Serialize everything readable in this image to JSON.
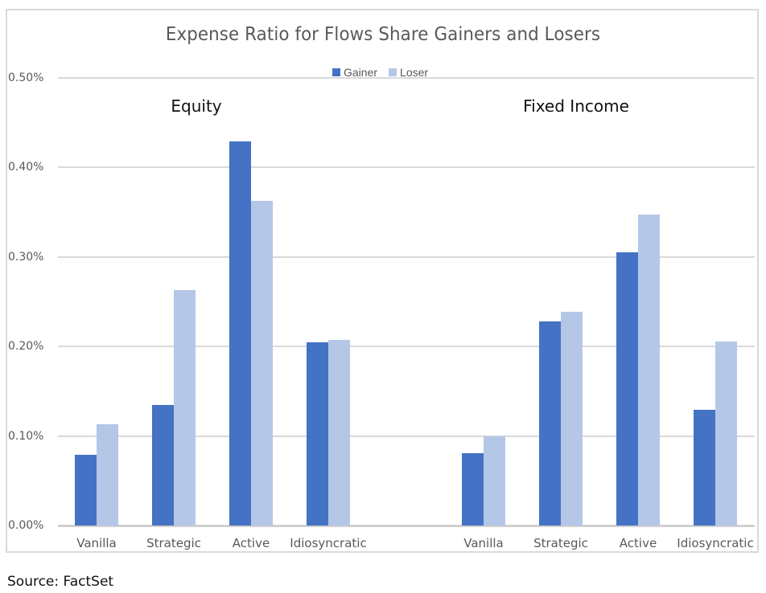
{
  "chart_data": {
    "type": "bar",
    "title": "Expense Ratio for Flows Share Gainers and Losers",
    "xlabel": "",
    "ylabel": "",
    "ylim": [
      0,
      0.5
    ],
    "y_unit": "%",
    "y_ticks": [
      "0.00%",
      "0.10%",
      "0.20%",
      "0.30%",
      "0.40%",
      "0.50%"
    ],
    "grid": true,
    "legend_position": "top",
    "groups": [
      {
        "name": "Equity",
        "categories": [
          "Vanilla",
          "Strategic",
          "Active",
          "Idiosyncratic"
        ],
        "series": [
          {
            "name": "Gainer",
            "values": [
              0.079,
              0.135,
              0.429,
              0.205
            ]
          },
          {
            "name": "Loser",
            "values": [
              0.113,
              0.263,
              0.363,
              0.207
            ]
          }
        ]
      },
      {
        "name": "Fixed Income",
        "categories": [
          "Vanilla",
          "Strategic",
          "Active",
          "Idiosyncratic"
        ],
        "series": [
          {
            "name": "Gainer",
            "values": [
              0.081,
              0.228,
              0.305,
              0.129
            ]
          },
          {
            "name": "Loser",
            "values": [
              0.1,
              0.239,
              0.347,
              0.206
            ]
          }
        ]
      }
    ],
    "categories": [
      "Vanilla",
      "Strategic",
      "Active",
      "Idiosyncratic",
      "Vanilla",
      "Strategic",
      "Active",
      "Idiosyncratic"
    ],
    "series": [
      {
        "name": "Gainer",
        "values": [
          0.079,
          0.135,
          0.429,
          0.205,
          0.081,
          0.228,
          0.305,
          0.129
        ]
      },
      {
        "name": "Loser",
        "values": [
          0.113,
          0.263,
          0.363,
          0.207,
          0.1,
          0.239,
          0.347,
          0.206
        ]
      }
    ]
  },
  "title": "Expense Ratio for Flows Share Gainers and Losers",
  "legend": [
    {
      "label": "Gainer",
      "color": "#4472c4"
    },
    {
      "label": "Loser",
      "color": "#b4c7e7"
    }
  ],
  "colors": {
    "gainer": "#4472c4",
    "loser": "#b4c7e7",
    "gridline": "#d9d9d9",
    "axis_text": "#595959"
  },
  "group_headings": [
    "Equity",
    "Fixed Income"
  ],
  "source": "Source: FactSet"
}
